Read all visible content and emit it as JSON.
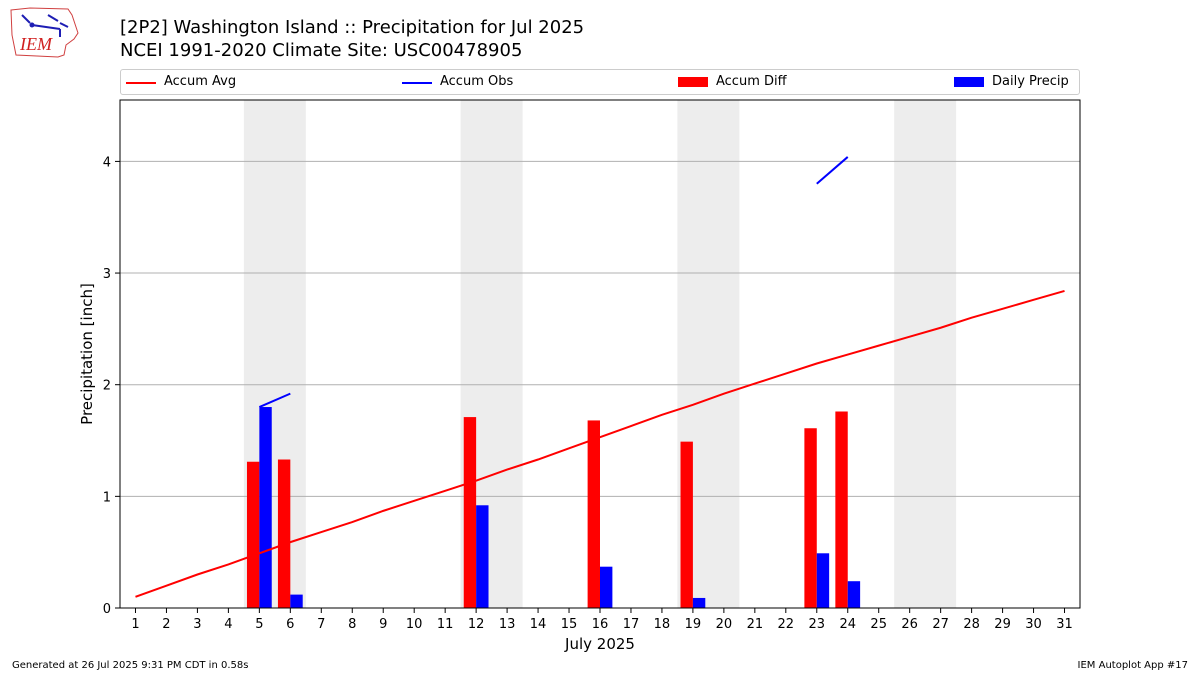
{
  "header": {
    "logo_text": "IEM",
    "title_line1": "[2P2] Washington Island :: Precipitation for Jul 2025",
    "title_line2": "NCEI 1991-2020 Climate Site: USC00478905"
  },
  "footer": {
    "generated": "Generated at 26 Jul 2025 9:31 PM CDT in 0.58s",
    "app": "IEM Autoplot App #17"
  },
  "colors": {
    "accum_avg": "#ff0000",
    "accum_obs": "#0000ff",
    "accum_diff": "#ff0000",
    "daily_precip": "#0000ff",
    "weekend_band": "#ededed",
    "grid": "#b0b0b0"
  },
  "legend": [
    {
      "label": "Accum Avg",
      "kind": "line",
      "color": "#ff0000"
    },
    {
      "label": "Accum Obs",
      "kind": "line",
      "color": "#0000ff"
    },
    {
      "label": "Accum Diff",
      "kind": "box",
      "color": "#ff0000"
    },
    {
      "label": "Daily Precip",
      "kind": "box",
      "color": "#0000ff"
    }
  ],
  "chart_data": {
    "type": "bar",
    "xlabel": "July 2025",
    "ylabel": "Precipitation [inch]",
    "xlim": [
      0.5,
      31.5
    ],
    "ylim": [
      0,
      4.55
    ],
    "yticks": [
      0,
      1,
      2,
      3,
      4
    ],
    "grid": true,
    "categories": [
      "1",
      "2",
      "3",
      "4",
      "5",
      "6",
      "7",
      "8",
      "9",
      "10",
      "11",
      "12",
      "13",
      "14",
      "15",
      "16",
      "17",
      "18",
      "19",
      "20",
      "21",
      "22",
      "23",
      "24",
      "25",
      "26",
      "27",
      "28",
      "29",
      "30",
      "31"
    ],
    "weekend_bands": [
      [
        4.5,
        6.5
      ],
      [
        11.5,
        13.5
      ],
      [
        18.5,
        20.5
      ],
      [
        25.5,
        27.5
      ]
    ],
    "accum_avg": {
      "name": "Accum Avg",
      "x": [
        1,
        2,
        3,
        4,
        5,
        6,
        7,
        8,
        9,
        10,
        11,
        12,
        13,
        14,
        15,
        16,
        17,
        18,
        19,
        20,
        21,
        22,
        23,
        24,
        25,
        26,
        27,
        28,
        29,
        30,
        31
      ],
      "values": [
        0.1,
        0.2,
        0.3,
        0.39,
        0.49,
        0.59,
        0.68,
        0.77,
        0.87,
        0.96,
        1.05,
        1.14,
        1.24,
        1.33,
        1.43,
        1.53,
        1.63,
        1.73,
        1.82,
        1.92,
        2.01,
        2.1,
        2.19,
        2.27,
        2.35,
        2.43,
        2.51,
        2.6,
        2.68,
        2.76,
        2.84
      ]
    },
    "accum_obs_segments": [
      {
        "x": [
          5,
          6
        ],
        "values": [
          1.8,
          1.92
        ]
      },
      {
        "x": [
          23,
          24
        ],
        "values": [
          3.8,
          4.04
        ]
      }
    ],
    "series": [
      {
        "name": "Accum Diff",
        "x": [
          5,
          6,
          12,
          16,
          19,
          23,
          24
        ],
        "values": [
          1.31,
          1.33,
          1.71,
          1.68,
          1.49,
          1.61,
          1.76
        ]
      },
      {
        "name": "Daily Precip",
        "x": [
          5,
          6,
          12,
          16,
          19,
          23,
          24
        ],
        "values": [
          1.8,
          0.12,
          0.92,
          0.37,
          0.09,
          0.49,
          0.24
        ]
      }
    ]
  }
}
